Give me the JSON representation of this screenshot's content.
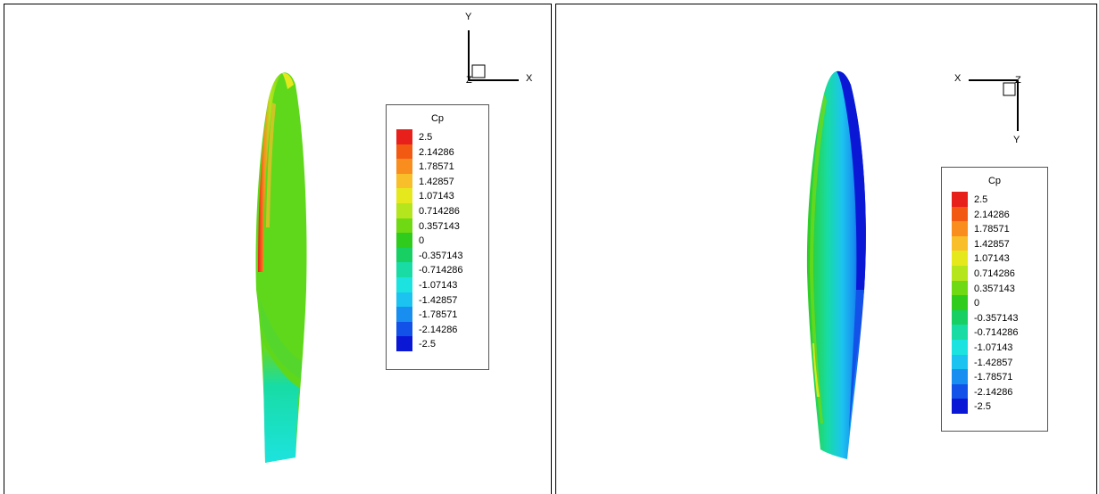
{
  "panels": [
    {
      "legend": {
        "title": "Cp",
        "levels": [
          "2.5",
          "2.14286",
          "1.78571",
          "1.42857",
          "1.07143",
          "0.714286",
          "0.357143",
          "0",
          "-0.357143",
          "-0.714286",
          "-1.07143",
          "-1.42857",
          "-1.78571",
          "-2.14286",
          "-2.5"
        ],
        "colors": [
          "#e8201b",
          "#f25a14",
          "#f98d1d",
          "#f9bf2a",
          "#e6e81e",
          "#b4e51d",
          "#6fd914",
          "#2fcc1e",
          "#17cf62",
          "#18dca4",
          "#1ce3df",
          "#1cc3f0",
          "#178ef0",
          "#1252e8",
          "#0a18d6"
        ]
      },
      "axes": {
        "vertical": "Y",
        "horizontal": "X",
        "origin": "Z"
      }
    },
    {
      "legend": {
        "title": "Cp",
        "levels": [
          "2.5",
          "2.14286",
          "1.78571",
          "1.42857",
          "1.07143",
          "0.714286",
          "0.357143",
          "0",
          "-0.357143",
          "-0.714286",
          "-1.07143",
          "-1.42857",
          "-1.78571",
          "-2.14286",
          "-2.5"
        ],
        "colors": [
          "#e8201b",
          "#f25a14",
          "#f98d1d",
          "#f9bf2a",
          "#e6e81e",
          "#b4e51d",
          "#6fd914",
          "#2fcc1e",
          "#17cf62",
          "#18dca4",
          "#1ce3df",
          "#1cc3f0",
          "#178ef0",
          "#1252e8",
          "#0a18d6"
        ]
      },
      "axes": {
        "vertical": "Y",
        "horizontal": "X",
        "origin": "Z"
      }
    }
  ]
}
